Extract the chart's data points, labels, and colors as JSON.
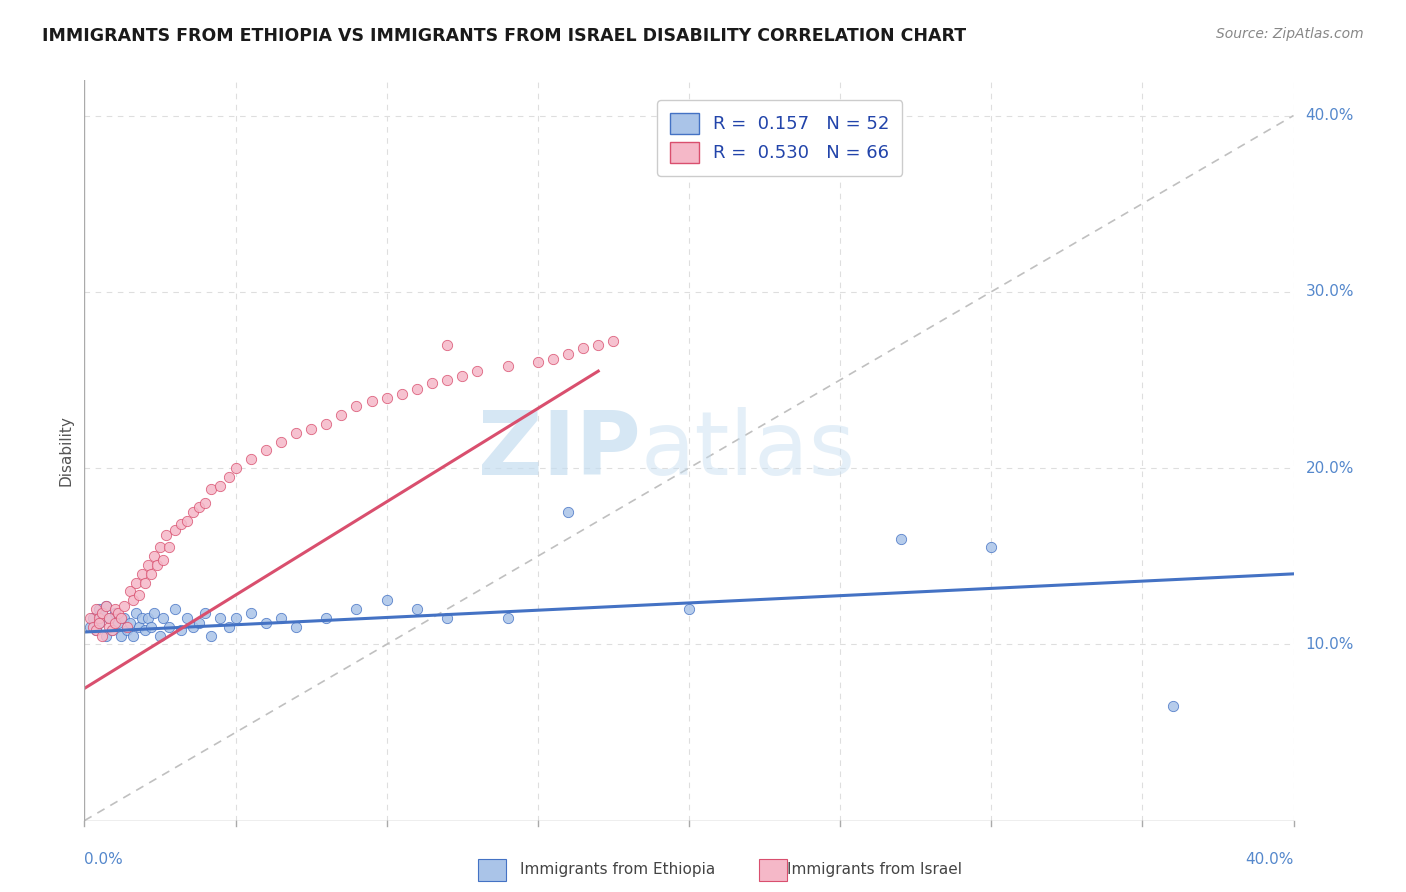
{
  "title": "IMMIGRANTS FROM ETHIOPIA VS IMMIGRANTS FROM ISRAEL DISABILITY CORRELATION CHART",
  "source": "Source: ZipAtlas.com",
  "ylabel": "Disability",
  "ylabel_right_ticks": [
    "10.0%",
    "20.0%",
    "30.0%",
    "40.0%"
  ],
  "ylabel_right_vals": [
    0.1,
    0.2,
    0.3,
    0.4
  ],
  "xlim": [
    0.0,
    0.4
  ],
  "ylim": [
    0.0,
    0.42
  ],
  "watermark_zip": "ZIP",
  "watermark_atlas": "atlas",
  "ethiopia_color": "#aac4e8",
  "israel_color": "#f5b8c8",
  "ethiopia_line_color": "#4472c4",
  "israel_line_color": "#d94f6e",
  "trendline_color": "#c8c8c8",
  "ethiopia_line_x": [
    0.0,
    0.4
  ],
  "ethiopia_line_y": [
    0.107,
    0.14
  ],
  "israel_line_x": [
    0.0,
    0.17
  ],
  "israel_line_y": [
    0.075,
    0.255
  ],
  "ethiopia_scatter_x": [
    0.002,
    0.003,
    0.004,
    0.005,
    0.005,
    0.006,
    0.007,
    0.007,
    0.008,
    0.009,
    0.01,
    0.011,
    0.012,
    0.013,
    0.014,
    0.015,
    0.016,
    0.017,
    0.018,
    0.019,
    0.02,
    0.021,
    0.022,
    0.023,
    0.025,
    0.026,
    0.028,
    0.03,
    0.032,
    0.034,
    0.036,
    0.038,
    0.04,
    0.042,
    0.045,
    0.048,
    0.05,
    0.055,
    0.06,
    0.065,
    0.07,
    0.08,
    0.09,
    0.1,
    0.11,
    0.12,
    0.14,
    0.16,
    0.2,
    0.27,
    0.3,
    0.36
  ],
  "ethiopia_scatter_y": [
    0.11,
    0.115,
    0.108,
    0.12,
    0.112,
    0.118,
    0.105,
    0.122,
    0.115,
    0.108,
    0.118,
    0.112,
    0.105,
    0.115,
    0.108,
    0.112,
    0.105,
    0.118,
    0.11,
    0.115,
    0.108,
    0.115,
    0.11,
    0.118,
    0.105,
    0.115,
    0.11,
    0.12,
    0.108,
    0.115,
    0.11,
    0.112,
    0.118,
    0.105,
    0.115,
    0.11,
    0.115,
    0.118,
    0.112,
    0.115,
    0.11,
    0.115,
    0.12,
    0.125,
    0.12,
    0.115,
    0.115,
    0.175,
    0.12,
    0.16,
    0.155,
    0.065
  ],
  "israel_scatter_x": [
    0.002,
    0.003,
    0.004,
    0.004,
    0.005,
    0.005,
    0.006,
    0.006,
    0.007,
    0.008,
    0.008,
    0.009,
    0.01,
    0.01,
    0.011,
    0.012,
    0.013,
    0.014,
    0.015,
    0.016,
    0.017,
    0.018,
    0.019,
    0.02,
    0.021,
    0.022,
    0.023,
    0.024,
    0.025,
    0.026,
    0.027,
    0.028,
    0.03,
    0.032,
    0.034,
    0.036,
    0.038,
    0.04,
    0.042,
    0.045,
    0.048,
    0.05,
    0.055,
    0.06,
    0.065,
    0.07,
    0.075,
    0.08,
    0.085,
    0.09,
    0.095,
    0.1,
    0.105,
    0.11,
    0.115,
    0.12,
    0.125,
    0.13,
    0.14,
    0.15,
    0.155,
    0.16,
    0.165,
    0.17,
    0.175,
    0.12
  ],
  "israel_scatter_y": [
    0.115,
    0.11,
    0.12,
    0.108,
    0.115,
    0.112,
    0.118,
    0.105,
    0.122,
    0.11,
    0.115,
    0.108,
    0.12,
    0.112,
    0.118,
    0.115,
    0.122,
    0.11,
    0.13,
    0.125,
    0.135,
    0.128,
    0.14,
    0.135,
    0.145,
    0.14,
    0.15,
    0.145,
    0.155,
    0.148,
    0.162,
    0.155,
    0.165,
    0.168,
    0.17,
    0.175,
    0.178,
    0.18,
    0.188,
    0.19,
    0.195,
    0.2,
    0.205,
    0.21,
    0.215,
    0.22,
    0.222,
    0.225,
    0.23,
    0.235,
    0.238,
    0.24,
    0.242,
    0.245,
    0.248,
    0.25,
    0.252,
    0.255,
    0.258,
    0.26,
    0.262,
    0.265,
    0.268,
    0.27,
    0.272,
    0.27
  ]
}
